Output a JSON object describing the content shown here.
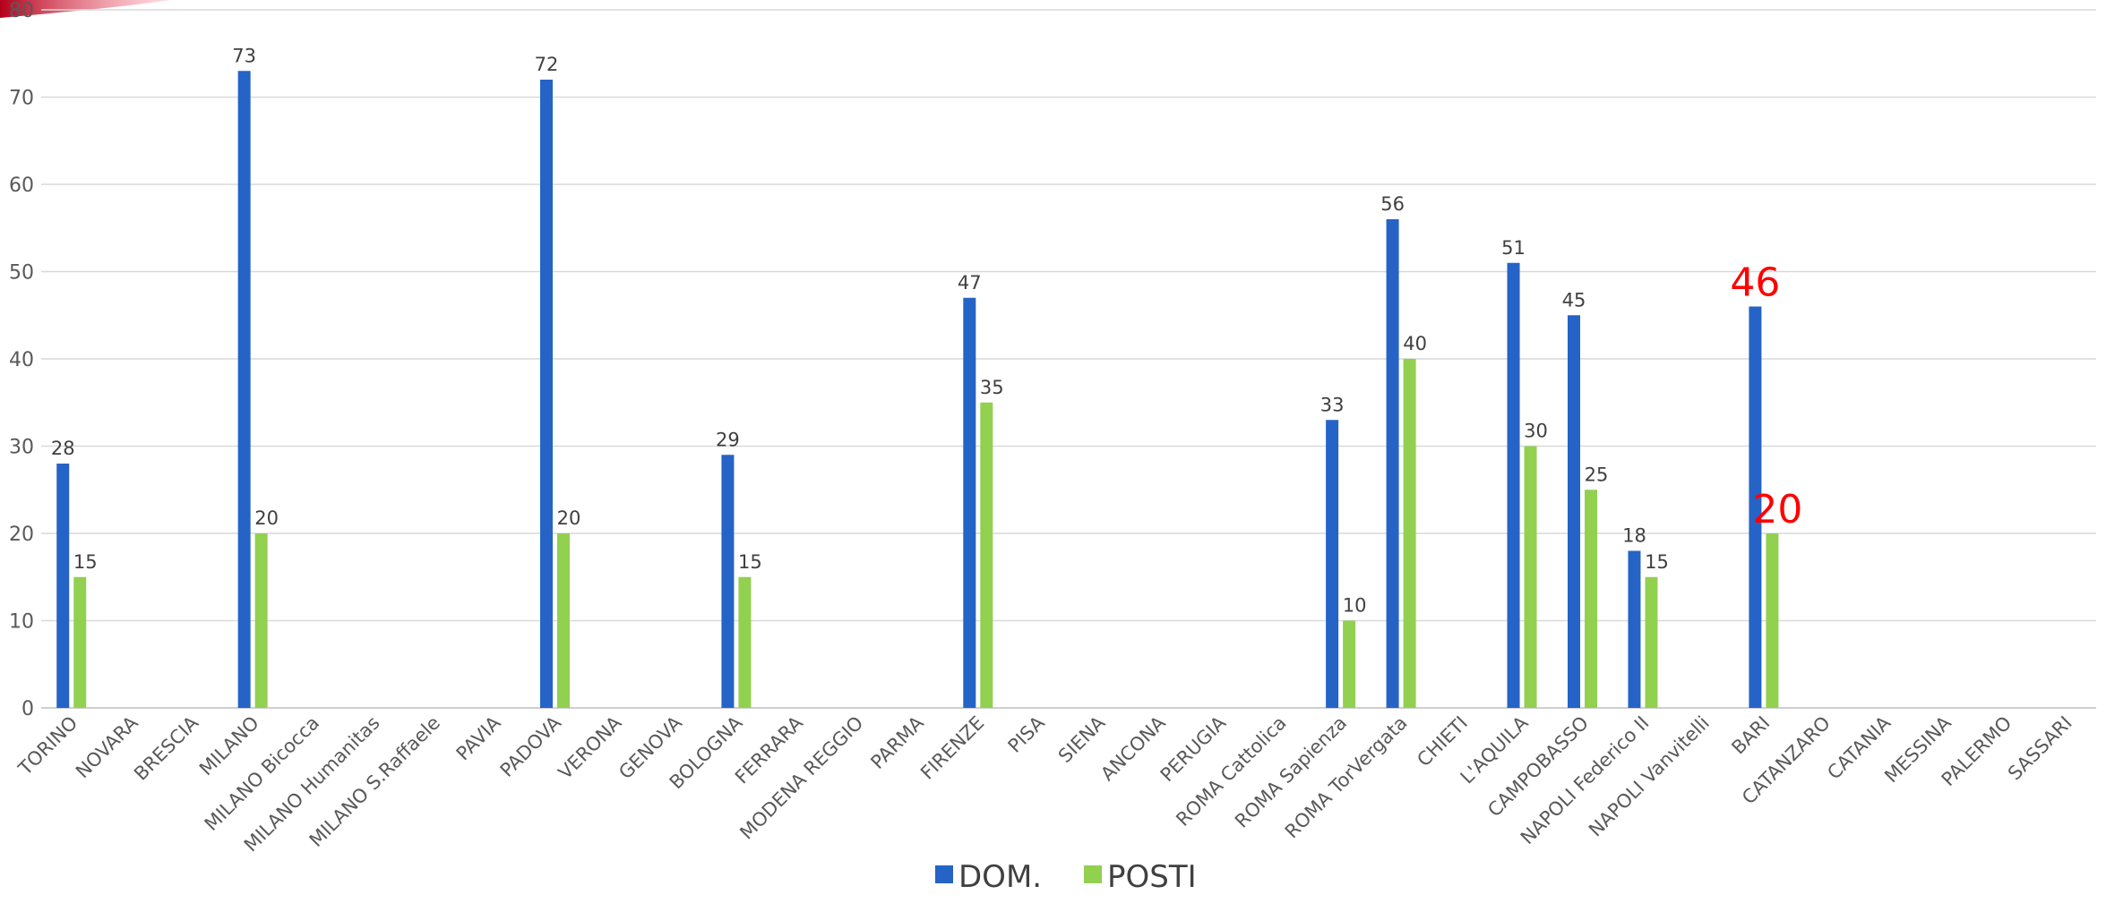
{
  "chart_data": {
    "type": "bar",
    "categories": [
      "TORINO",
      "NOVARA",
      "BRESCIA",
      "MILANO",
      "MILANO Bicocca",
      "MILANO Humanitas",
      "MILANO S.Raffaele",
      "PAVIA",
      "PADOVA",
      "VERONA",
      "GENOVA",
      "BOLOGNA",
      "FERRARA",
      "MODENA REGGIO",
      "PARMA",
      "FIRENZE",
      "PISA",
      "SIENA",
      "ANCONA",
      "PERUGIA",
      "ROMA Cattolica",
      "ROMA Sapienza",
      "ROMA TorVergata",
      "CHIETI",
      "L'AQUILA",
      "CAMPOBASSO",
      "NAPOLI Federico II",
      "NAPOLI Vanvitelli",
      "BARI",
      "CATANZARO",
      "CATANIA",
      "MESSINA",
      "PALERMO",
      "SASSARI"
    ],
    "series": [
      {
        "name": "DOM.",
        "color": "#2563c7",
        "values": [
          28,
          null,
          null,
          73,
          null,
          null,
          null,
          null,
          72,
          null,
          null,
          29,
          null,
          null,
          null,
          47,
          null,
          null,
          null,
          null,
          null,
          33,
          56,
          null,
          51,
          45,
          18,
          null,
          46,
          null,
          null,
          null,
          null,
          null
        ]
      },
      {
        "name": "POSTI",
        "color": "#92d050",
        "values": [
          15,
          null,
          null,
          20,
          null,
          null,
          null,
          null,
          20,
          null,
          null,
          15,
          null,
          null,
          null,
          35,
          null,
          null,
          null,
          null,
          null,
          10,
          40,
          null,
          30,
          25,
          15,
          null,
          20,
          null,
          null,
          null,
          null,
          null
        ]
      }
    ],
    "highlighted_category": "BARI",
    "highlight_color": "#ff0000",
    "title": "",
    "xlabel": "",
    "ylabel": "",
    "ylim": [
      0,
      80
    ],
    "yticks": [
      0,
      10,
      20,
      30,
      40,
      50,
      60,
      70,
      80
    ],
    "grid": true,
    "legend_position": "bottom"
  }
}
